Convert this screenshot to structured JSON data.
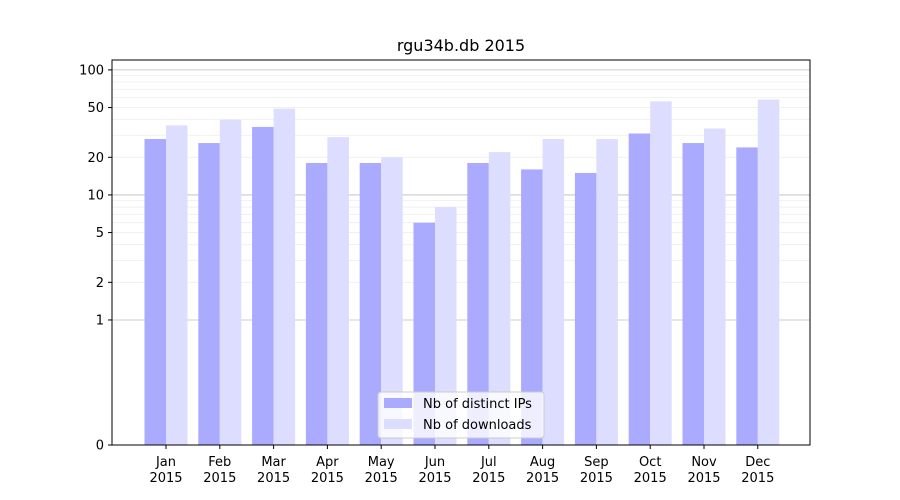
{
  "chart_data": {
    "type": "bar",
    "title": "rgu34b.db 2015",
    "xlabel": "",
    "ylabel": "",
    "y_scale": "symlog",
    "ylim": [
      0,
      120
    ],
    "yticks": [
      0,
      1,
      2,
      5,
      10,
      20,
      50,
      100
    ],
    "grid": "horizontal",
    "legend_position": "bottom-center",
    "categories": [
      [
        "Jan",
        "2015"
      ],
      [
        "Feb",
        "2015"
      ],
      [
        "Mar",
        "2015"
      ],
      [
        "Apr",
        "2015"
      ],
      [
        "May",
        "2015"
      ],
      [
        "Jun",
        "2015"
      ],
      [
        "Jul",
        "2015"
      ],
      [
        "Aug",
        "2015"
      ],
      [
        "Sep",
        "2015"
      ],
      [
        "Oct",
        "2015"
      ],
      [
        "Nov",
        "2015"
      ],
      [
        "Dec",
        "2015"
      ]
    ],
    "series": [
      {
        "name": "Nb of distinct IPs",
        "color": "#aaaaff",
        "values": [
          28,
          26,
          35,
          18,
          18,
          6,
          18,
          16,
          15,
          31,
          26,
          24
        ]
      },
      {
        "name": "Nb of downloads",
        "color": "#ddddff",
        "values": [
          36,
          40,
          49,
          29,
          20,
          8,
          22,
          28,
          28,
          56,
          34,
          58
        ]
      }
    ]
  }
}
